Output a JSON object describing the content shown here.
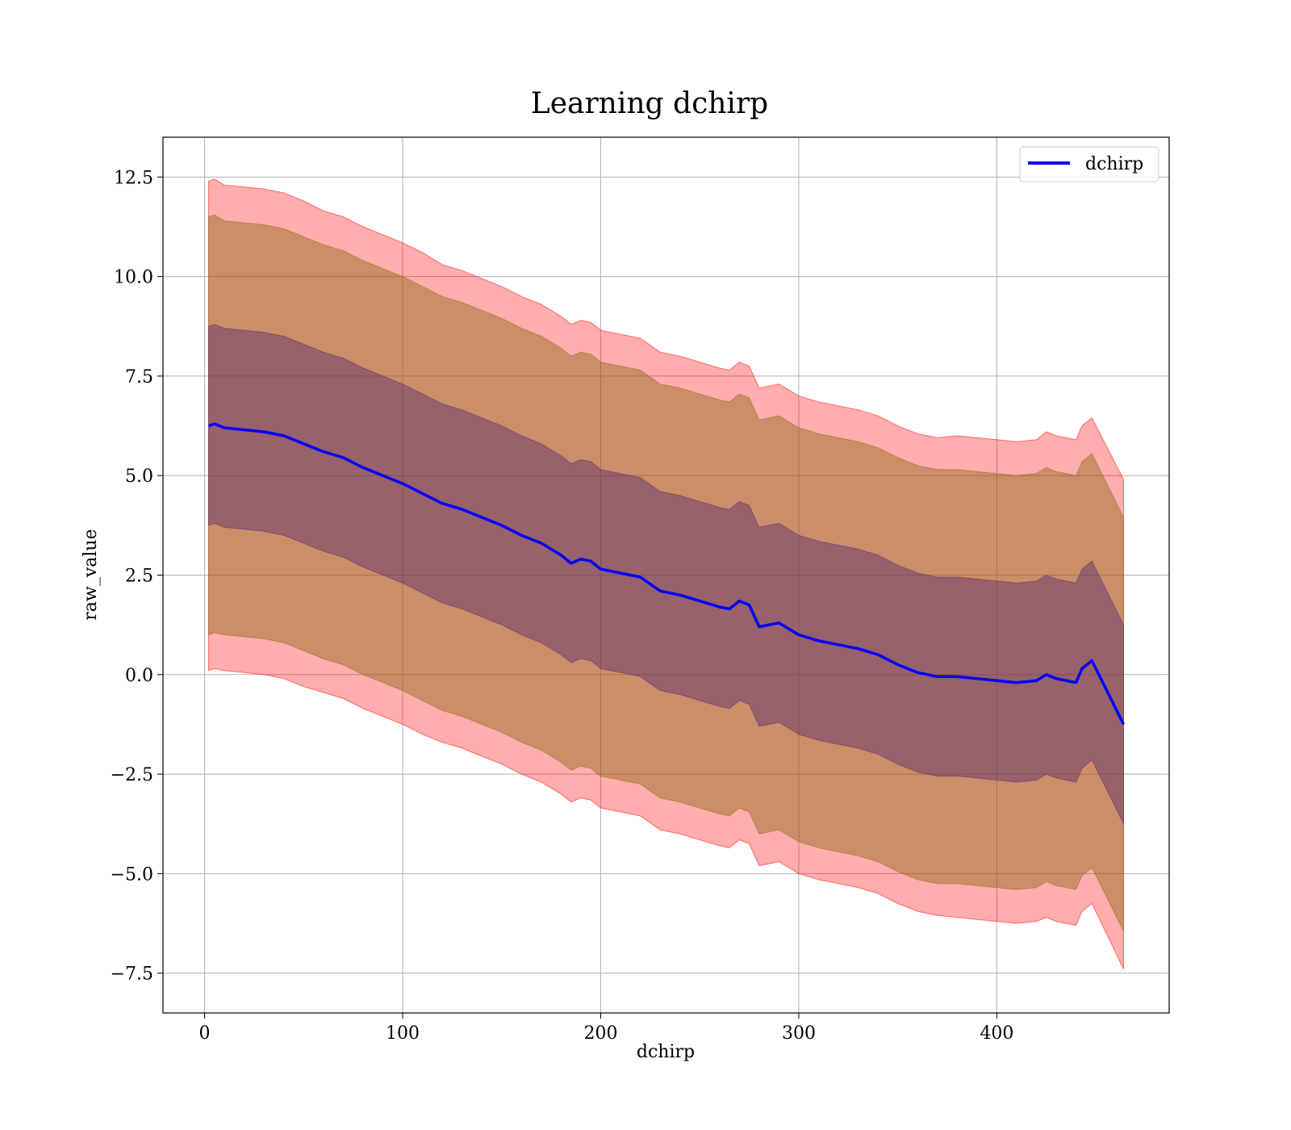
{
  "chart_data": {
    "type": "line",
    "title": "Learning dchirp",
    "xlabel": "dchirp",
    "ylabel": "raw_value",
    "xlim": [
      -21,
      487
    ],
    "ylim": [
      -8.5,
      13.5
    ],
    "xticks": [
      0,
      100,
      200,
      300,
      400
    ],
    "yticks": [
      -7.5,
      -5.0,
      -2.5,
      0.0,
      2.5,
      5.0,
      7.5,
      10.0,
      12.5
    ],
    "xtick_labels": [
      "0",
      "100",
      "200",
      "300",
      "400"
    ],
    "ytick_labels": [
      "−7.5",
      "−5.0",
      "−2.5",
      "0.0",
      "2.5",
      "5.0",
      "7.5",
      "10.0",
      "12.5"
    ],
    "grid": true,
    "legend": {
      "position": "top-right",
      "entries": [
        "dchirp"
      ]
    },
    "series": [
      {
        "name": "dchirp",
        "color": "#0000ff",
        "x": [
          2,
          5,
          10,
          20,
          30,
          40,
          50,
          60,
          70,
          80,
          90,
          100,
          110,
          120,
          130,
          140,
          150,
          160,
          170,
          180,
          185,
          190,
          195,
          200,
          210,
          220,
          230,
          240,
          250,
          260,
          265,
          270,
          275,
          280,
          290,
          300,
          310,
          320,
          330,
          340,
          350,
          360,
          370,
          380,
          390,
          400,
          410,
          420,
          425,
          430,
          440,
          443,
          448,
          464
        ],
        "y": [
          6.25,
          6.3,
          6.2,
          6.15,
          6.1,
          6.0,
          5.8,
          5.6,
          5.45,
          5.2,
          5.0,
          4.8,
          4.55,
          4.3,
          4.15,
          3.95,
          3.75,
          3.5,
          3.3,
          3.0,
          2.8,
          2.9,
          2.85,
          2.65,
          2.55,
          2.45,
          2.1,
          2.0,
          1.85,
          1.7,
          1.65,
          1.85,
          1.75,
          1.2,
          1.3,
          1.0,
          0.85,
          0.75,
          0.65,
          0.5,
          0.25,
          0.05,
          -0.05,
          -0.05,
          -0.1,
          -0.15,
          -0.2,
          -0.15,
          0.0,
          -0.1,
          -0.2,
          0.15,
          0.35,
          -1.25
        ]
      }
    ],
    "bands": [
      {
        "color": "#ff0000",
        "opacity": 0.32,
        "half_width": [
          6.15,
          6.15,
          6.1,
          6.1,
          6.1,
          6.1,
          6.1,
          6.05,
          6.05,
          6.05,
          6.05,
          6.05,
          6.05,
          6.0,
          6.0,
          6.0,
          6.0,
          6.0,
          6.0,
          6.0,
          6.0,
          6.0,
          6.0,
          6.0,
          6.0,
          6.0,
          6.0,
          6.0,
          6.0,
          6.0,
          6.0,
          6.0,
          6.0,
          6.0,
          6.0,
          6.0,
          6.0,
          6.0,
          6.0,
          6.0,
          6.0,
          6.0,
          6.0,
          6.05,
          6.05,
          6.05,
          6.05,
          6.05,
          6.1,
          6.1,
          6.1,
          6.1,
          6.1,
          6.15
        ]
      },
      {
        "color": "#8b6914",
        "opacity": 0.45,
        "half_width": [
          5.25,
          5.25,
          5.2,
          5.2,
          5.2,
          5.2,
          5.2,
          5.2,
          5.2,
          5.2,
          5.2,
          5.2,
          5.2,
          5.2,
          5.2,
          5.2,
          5.2,
          5.2,
          5.2,
          5.2,
          5.2,
          5.2,
          5.2,
          5.2,
          5.2,
          5.2,
          5.2,
          5.2,
          5.2,
          5.2,
          5.2,
          5.2,
          5.2,
          5.2,
          5.2,
          5.2,
          5.2,
          5.2,
          5.2,
          5.2,
          5.2,
          5.2,
          5.2,
          5.2,
          5.2,
          5.2,
          5.2,
          5.2,
          5.2,
          5.2,
          5.2,
          5.2,
          5.2,
          5.2
        ]
      },
      {
        "color": "#5a2a6e",
        "opacity": 0.45,
        "half_width": [
          2.5,
          2.5,
          2.5,
          2.5,
          2.5,
          2.5,
          2.5,
          2.5,
          2.5,
          2.5,
          2.5,
          2.5,
          2.5,
          2.5,
          2.5,
          2.5,
          2.5,
          2.5,
          2.5,
          2.5,
          2.5,
          2.5,
          2.5,
          2.5,
          2.5,
          2.5,
          2.5,
          2.5,
          2.5,
          2.5,
          2.5,
          2.5,
          2.5,
          2.5,
          2.5,
          2.5,
          2.5,
          2.5,
          2.5,
          2.5,
          2.5,
          2.5,
          2.5,
          2.5,
          2.5,
          2.5,
          2.5,
          2.5,
          2.5,
          2.5,
          2.5,
          2.5,
          2.5,
          2.5
        ]
      }
    ]
  }
}
